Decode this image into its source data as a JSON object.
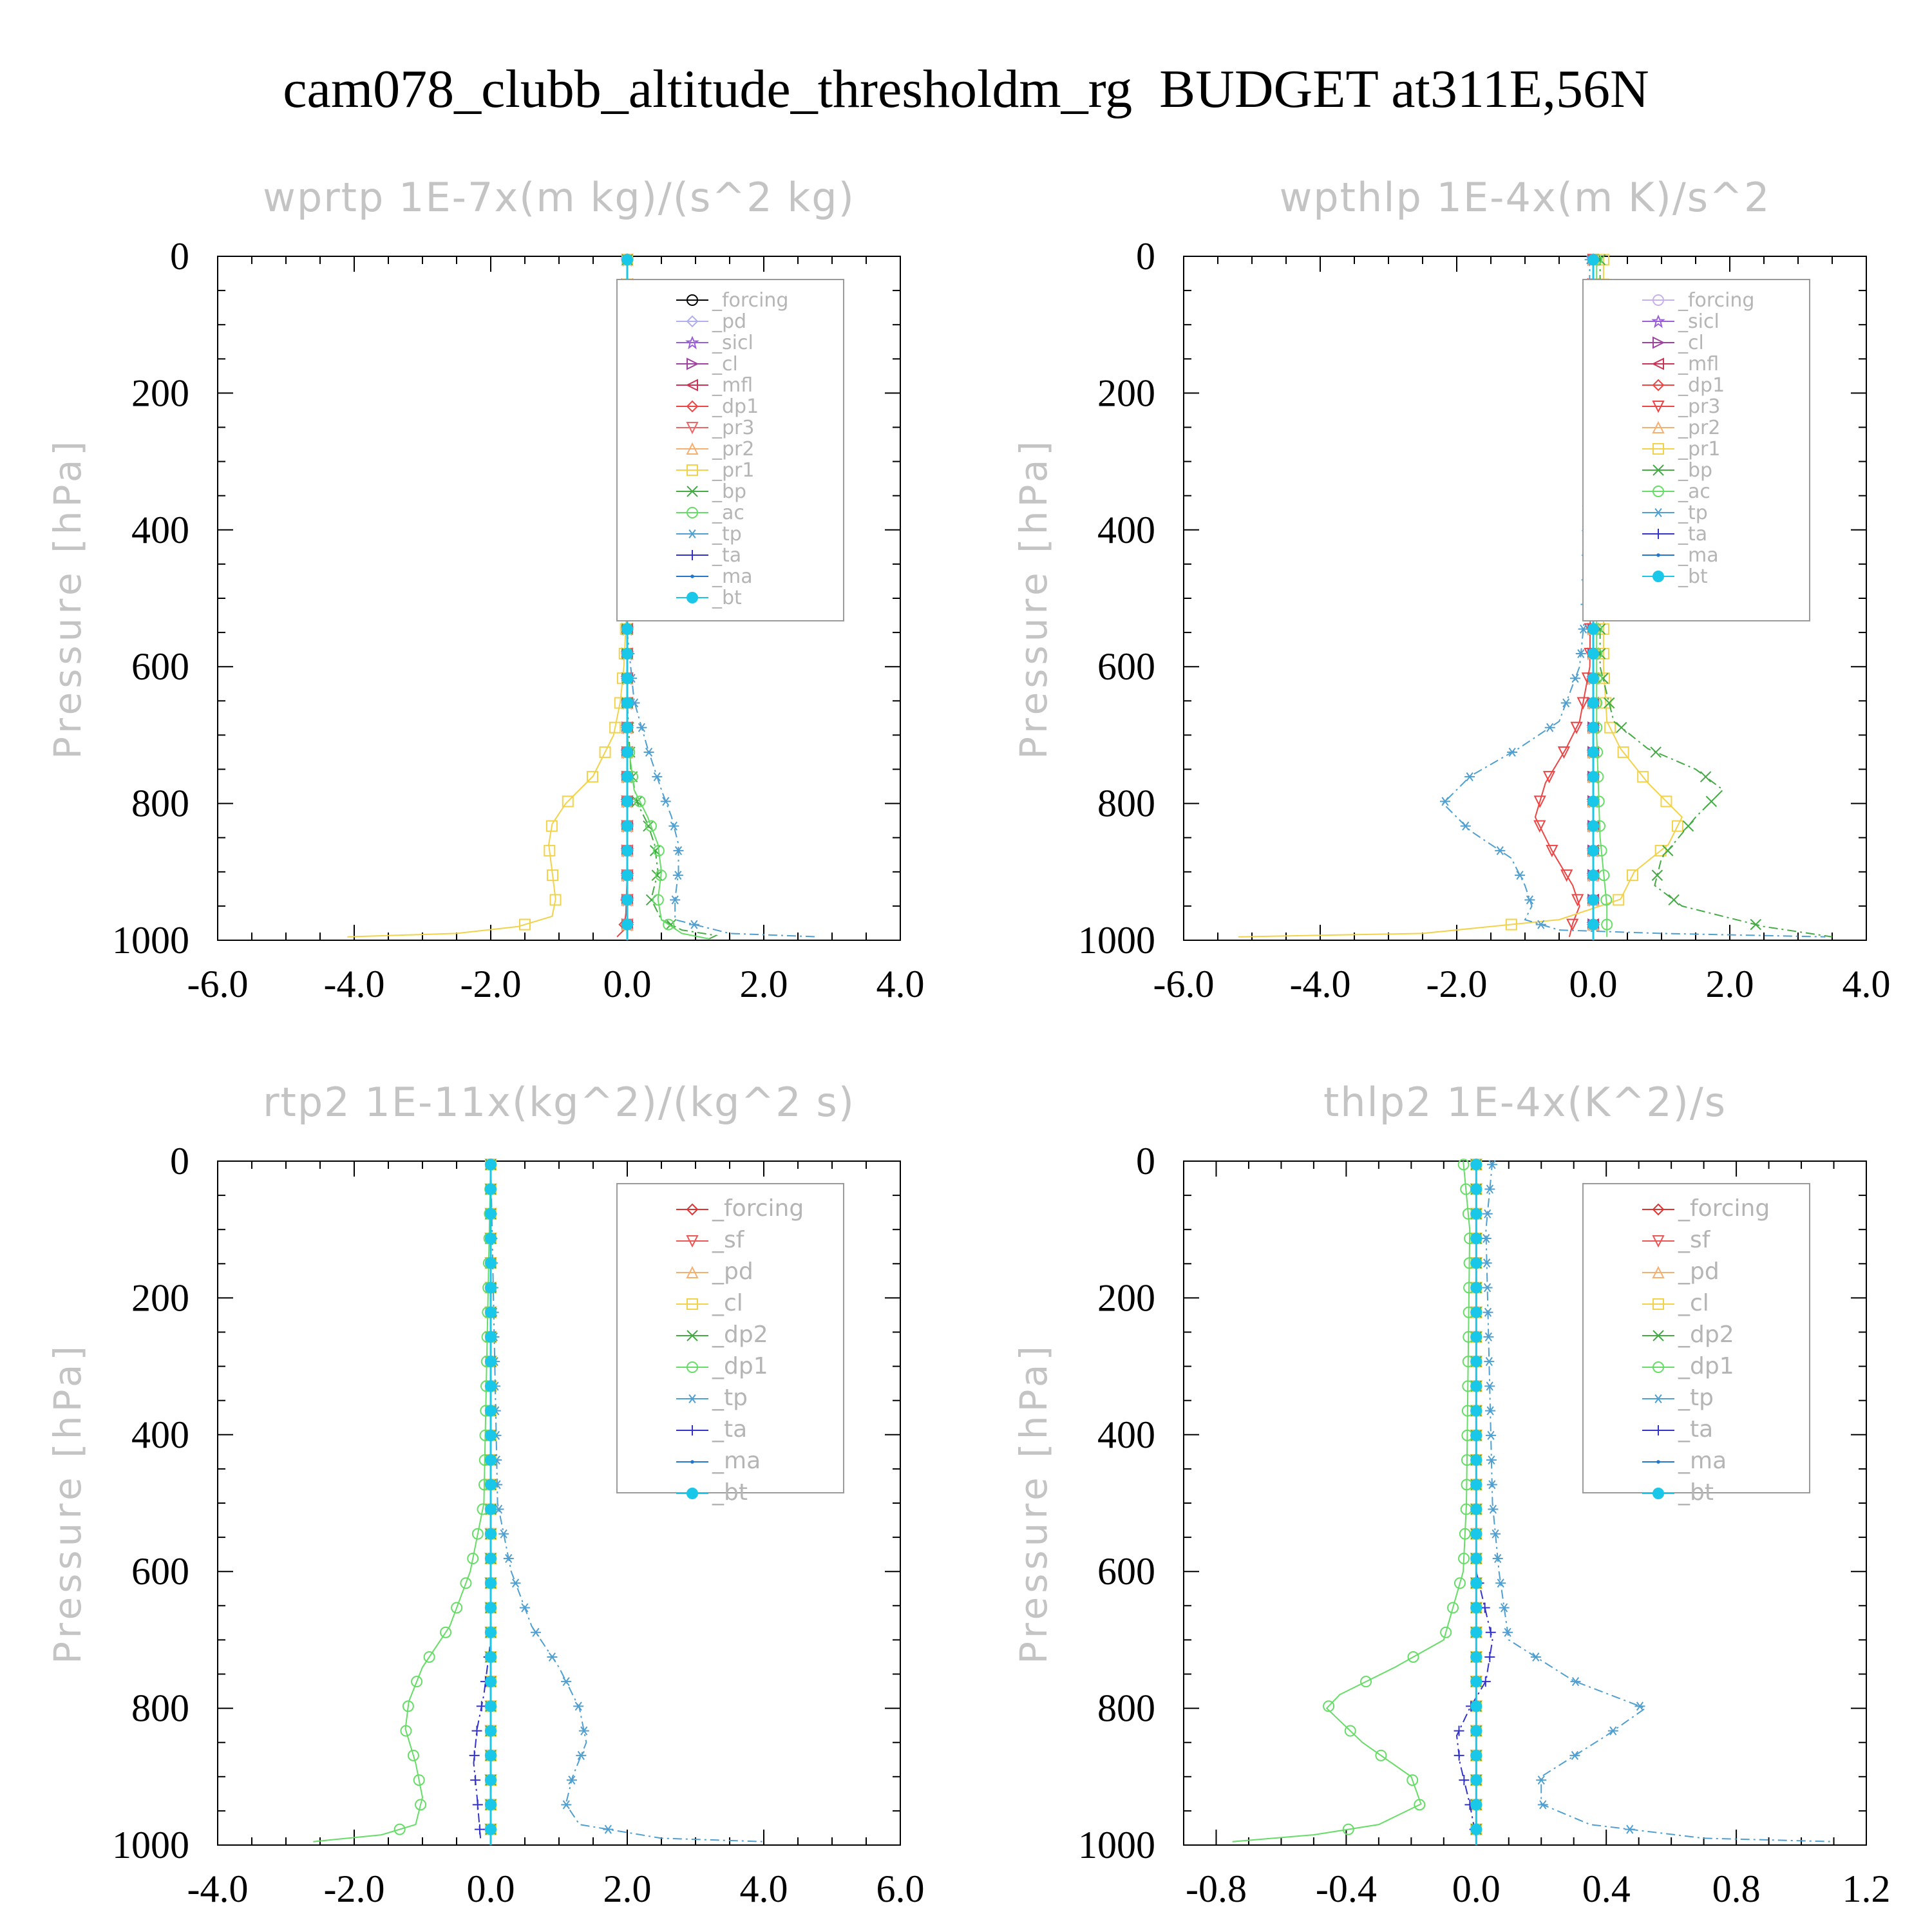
{
  "title": "cam078_clubb_altitude_thresholdm_rg  BUDGET at311E,56N",
  "chart_data": [
    {
      "type": "line",
      "title": "wprtp  1E-7x(m kg)/(s^2 kg)",
      "xlabel": "",
      "ylabel": "Pressure [hPa]",
      "xlim": [
        -6,
        4
      ],
      "ylim": [
        1000,
        0
      ],
      "xticks": [
        "-6.0",
        "-4.0",
        "-2.0",
        "0.0",
        "2.0",
        "4.0"
      ],
      "yticks": [
        "0",
        "200",
        "400",
        "600",
        "800",
        "1000"
      ],
      "legend_position": "top-right",
      "series": [
        {
          "name": "_forcing",
          "color": "#000000",
          "marker": "circle",
          "x": [
            0,
            0
          ],
          "y": [
            0,
            1000
          ]
        },
        {
          "name": "_pd",
          "color": "#b0b0f0",
          "marker": "diamond",
          "x": [
            0,
            0
          ],
          "y": [
            0,
            1000
          ]
        },
        {
          "name": "_sicl",
          "color": "#9a5fd6",
          "marker": "star",
          "x": [
            0,
            0
          ],
          "y": [
            0,
            1000
          ]
        },
        {
          "name": "_cl",
          "color": "#a040a0",
          "marker": "tri-right",
          "x": [
            0,
            0
          ],
          "y": [
            0,
            1000
          ]
        },
        {
          "name": "_mfl",
          "color": "#cc3355",
          "marker": "tri-left",
          "x": [
            0,
            0
          ],
          "y": [
            0,
            1000
          ]
        },
        {
          "name": "_dp1",
          "color": "#ee4444",
          "marker": "diamond",
          "x": [
            0,
            0,
            -0.02,
            -0.05,
            -0.15
          ],
          "y": [
            0,
            900,
            960,
            985,
            995
          ]
        },
        {
          "name": "_pr3",
          "color": "#ee6666",
          "marker": "tri-down",
          "x": [
            0,
            0
          ],
          "y": [
            0,
            1000
          ]
        },
        {
          "name": "_pr2",
          "color": "#f5b070",
          "marker": "tri-up",
          "x": [
            0,
            0
          ],
          "y": [
            0,
            1000
          ]
        },
        {
          "name": "_pr1",
          "color": "#f2d24a",
          "marker": "square",
          "x": [
            0,
            0,
            -0.05,
            -0.1,
            -0.2,
            -0.5,
            -0.9,
            -1.1,
            -1.15,
            -1.1,
            -1.05,
            -1.1,
            -1.6,
            -2.5,
            -4.1
          ],
          "y": [
            0,
            500,
            600,
            650,
            700,
            760,
            800,
            830,
            860,
            900,
            940,
            965,
            980,
            990,
            995
          ]
        },
        {
          "name": "_bp",
          "color": "#44aa44",
          "marker": "x",
          "x": [
            0,
            0,
            0.05,
            0.15,
            0.3,
            0.4,
            0.45,
            0.35,
            0.5,
            0.8,
            1.3,
            1.2
          ],
          "y": [
            0,
            650,
            750,
            800,
            830,
            860,
            900,
            940,
            970,
            985,
            993,
            998
          ]
        },
        {
          "name": "_ac",
          "color": "#66dd66",
          "marker": "circle",
          "x": [
            0,
            0,
            0.1,
            0.3,
            0.45,
            0.5,
            0.45,
            0.5,
            0.8,
            1.2
          ],
          "y": [
            0,
            700,
            780,
            820,
            860,
            900,
            940,
            970,
            990,
            998
          ]
        },
        {
          "name": "_tp",
          "color": "#4f9fd0",
          "marker": "asterisk",
          "x": [
            0,
            0,
            0.1,
            0.3,
            0.5,
            0.65,
            0.75,
            0.75,
            0.7,
            0.7,
            1.5,
            2.8
          ],
          "y": [
            0,
            550,
            650,
            720,
            780,
            820,
            860,
            900,
            940,
            970,
            990,
            995
          ]
        },
        {
          "name": "_ta",
          "color": "#3333cc",
          "marker": "plus",
          "x": [
            0,
            0
          ],
          "y": [
            0,
            1000
          ]
        },
        {
          "name": "_ma",
          "color": "#2277cc",
          "marker": "dot",
          "x": [
            0,
            0
          ],
          "y": [
            0,
            1000
          ]
        },
        {
          "name": "_bt",
          "color": "#19c7e8",
          "marker": "filled-circle",
          "x": [
            0,
            0
          ],
          "y": [
            0,
            1000
          ]
        }
      ]
    },
    {
      "type": "line",
      "title": "wpthlp  1E-4x(m K)/s^2",
      "xlabel": "",
      "ylabel": "Pressure [hPa]",
      "xlim": [
        -6,
        4
      ],
      "ylim": [
        1000,
        0
      ],
      "xticks": [
        "-6.0",
        "-4.0",
        "-2.0",
        "0.0",
        "2.0",
        "4.0"
      ],
      "yticks": [
        "0",
        "200",
        "400",
        "600",
        "800",
        "1000"
      ],
      "legend_position": "top-right",
      "series": [
        {
          "name": "_forcing",
          "color": "#c8b0f0",
          "marker": "circle",
          "x": [
            0,
            0
          ],
          "y": [
            0,
            1000
          ]
        },
        {
          "name": "_sicl",
          "color": "#9a5fd6",
          "marker": "star",
          "x": [
            0,
            0
          ],
          "y": [
            0,
            1000
          ]
        },
        {
          "name": "_cl",
          "color": "#a040a0",
          "marker": "tri-right",
          "x": [
            0,
            0
          ],
          "y": [
            0,
            1000
          ]
        },
        {
          "name": "_mfl",
          "color": "#cc3355",
          "marker": "tri-left",
          "x": [
            0,
            0
          ],
          "y": [
            0,
            1000
          ]
        },
        {
          "name": "_dp1",
          "color": "#ee4444",
          "marker": "diamond",
          "x": [
            0,
            0
          ],
          "y": [
            0,
            1000
          ]
        },
        {
          "name": "_pr3",
          "color": "#ee4444",
          "marker": "tri-down",
          "x": [
            0,
            -0.05,
            -0.2,
            -0.4,
            -0.7,
            -0.85,
            -0.6,
            -0.3,
            -0.2,
            -0.3,
            -0.35
          ],
          "y": [
            0,
            600,
            680,
            720,
            770,
            820,
            870,
            920,
            950,
            975,
            995
          ]
        },
        {
          "name": "_pr2",
          "color": "#f5b070",
          "marker": "tri-up",
          "x": [
            0,
            0
          ],
          "y": [
            0,
            1000
          ]
        },
        {
          "name": "_pr1",
          "color": "#f2d24a",
          "marker": "square",
          "x": [
            0.15,
            0.15,
            0.2,
            0.4,
            0.8,
            1.3,
            1.1,
            0.6,
            0.4,
            -0.5,
            -2.5,
            -5.2
          ],
          "y": [
            0,
            600,
            680,
            720,
            770,
            820,
            860,
            900,
            940,
            970,
            990,
            995
          ]
        },
        {
          "name": "_bp",
          "color": "#44aa44",
          "marker": "x",
          "x": [
            0.1,
            0.1,
            0.3,
            0.8,
            1.5,
            1.9,
            1.5,
            1.0,
            0.9,
            1.3,
            2.5,
            3.5
          ],
          "y": [
            0,
            600,
            680,
            720,
            750,
            780,
            820,
            880,
            920,
            950,
            980,
            995
          ]
        },
        {
          "name": "_ac",
          "color": "#66dd66",
          "marker": "circle",
          "x": [
            0.05,
            0.05,
            0.1,
            0.2,
            0.2
          ],
          "y": [
            0,
            700,
            850,
            950,
            995
          ]
        },
        {
          "name": "_tp",
          "color": "#4f9fd0",
          "marker": "asterisk",
          "x": [
            -0.05,
            -0.1,
            -0.2,
            -0.5,
            -1.1,
            -1.8,
            -2.2,
            -1.8,
            -1.2,
            -1.0,
            -0.9,
            -1.0,
            -0.5,
            1.0,
            3.4
          ],
          "y": [
            0,
            500,
            600,
            680,
            720,
            760,
            800,
            840,
            880,
            920,
            950,
            970,
            985,
            990,
            995
          ]
        },
        {
          "name": "_ta",
          "color": "#3333cc",
          "marker": "plus",
          "x": [
            0,
            0
          ],
          "y": [
            0,
            1000
          ]
        },
        {
          "name": "_ma",
          "color": "#2277cc",
          "marker": "dot",
          "x": [
            0,
            0
          ],
          "y": [
            0,
            1000
          ]
        },
        {
          "name": "_bt",
          "color": "#19c7e8",
          "marker": "filled-circle",
          "x": [
            0,
            0
          ],
          "y": [
            0,
            1000
          ]
        }
      ]
    },
    {
      "type": "line",
      "title": "rtp2  1E-11x(kg^2)/(kg^2 s)",
      "xlabel": "",
      "ylabel": "Pressure [hPa]",
      "xlim": [
        -4,
        6
      ],
      "ylim": [
        1000,
        0
      ],
      "xticks": [
        "-4.0",
        "-2.0",
        "0.0",
        "2.0",
        "4.0",
        "6.0"
      ],
      "yticks": [
        "0",
        "200",
        "400",
        "600",
        "800",
        "1000"
      ],
      "legend_position": "top-right",
      "series": [
        {
          "name": "_forcing",
          "color": "#dd3333",
          "marker": "diamond",
          "x": [
            0,
            0
          ],
          "y": [
            0,
            1000
          ]
        },
        {
          "name": "_sf",
          "color": "#ee5555",
          "marker": "tri-down",
          "x": [
            0,
            0
          ],
          "y": [
            0,
            1000
          ]
        },
        {
          "name": "_pd",
          "color": "#f5b070",
          "marker": "tri-up",
          "x": [
            0,
            0
          ],
          "y": [
            0,
            1000
          ]
        },
        {
          "name": "_cl",
          "color": "#f2d24a",
          "marker": "square",
          "x": [
            0,
            0
          ],
          "y": [
            0,
            1000
          ]
        },
        {
          "name": "_dp2",
          "color": "#44aa44",
          "marker": "x",
          "x": [
            0,
            0
          ],
          "y": [
            0,
            1000
          ]
        },
        {
          "name": "_dp1",
          "color": "#66dd66",
          "marker": "circle",
          "x": [
            0,
            -0.1,
            -0.3,
            -0.6,
            -1.0,
            -1.2,
            -1.25,
            -1.1,
            -1.0,
            -1.1,
            -1.6,
            -2.6
          ],
          "y": [
            0,
            500,
            600,
            680,
            740,
            790,
            830,
            880,
            930,
            970,
            985,
            995
          ]
        },
        {
          "name": "_tp",
          "color": "#4f9fd0",
          "marker": "asterisk",
          "x": [
            0,
            0.1,
            0.3,
            0.6,
            1.0,
            1.3,
            1.4,
            1.2,
            1.1,
            1.3,
            2.5,
            4.0
          ],
          "y": [
            0,
            500,
            600,
            680,
            740,
            800,
            850,
            900,
            940,
            970,
            990,
            995
          ]
        },
        {
          "name": "_ta",
          "color": "#3333cc",
          "marker": "plus",
          "x": [
            0,
            0,
            -0.1,
            -0.2,
            -0.25,
            -0.2,
            -0.15
          ],
          "y": [
            0,
            700,
            780,
            830,
            880,
            930,
            990
          ]
        },
        {
          "name": "_ma",
          "color": "#2277cc",
          "marker": "dot",
          "x": [
            0,
            0
          ],
          "y": [
            0,
            1000
          ]
        },
        {
          "name": "_bt",
          "color": "#19c7e8",
          "marker": "filled-circle",
          "x": [
            0,
            0
          ],
          "y": [
            0,
            1000
          ]
        }
      ]
    },
    {
      "type": "line",
      "title": "thlp2  1E-4x(K^2)/s",
      "xlabel": "",
      "ylabel": "Pressure [hPa]",
      "xlim": [
        -0.9,
        1.2
      ],
      "ylim": [
        1000,
        0
      ],
      "xticks": [
        "-0.8",
        "-0.4",
        "0.0",
        "0.4",
        "0.8",
        "1.2"
      ],
      "yticks": [
        "0",
        "200",
        "400",
        "600",
        "800",
        "1000"
      ],
      "legend_position": "top-right",
      "series": [
        {
          "name": "_forcing",
          "color": "#dd3333",
          "marker": "diamond",
          "x": [
            0,
            0
          ],
          "y": [
            0,
            1000
          ]
        },
        {
          "name": "_sf",
          "color": "#ee5555",
          "marker": "tri-down",
          "x": [
            0,
            0
          ],
          "y": [
            0,
            1000
          ]
        },
        {
          "name": "_pd",
          "color": "#f5b070",
          "marker": "tri-up",
          "x": [
            0,
            0
          ],
          "y": [
            0,
            1000
          ]
        },
        {
          "name": "_cl",
          "color": "#f2d24a",
          "marker": "square",
          "x": [
            0,
            0
          ],
          "y": [
            0,
            1000
          ]
        },
        {
          "name": "_dp2",
          "color": "#44aa44",
          "marker": "x",
          "x": [
            0,
            0
          ],
          "y": [
            0,
            1000
          ]
        },
        {
          "name": "_dp1",
          "color": "#66dd66",
          "marker": "circle",
          "x": [
            -0.04,
            -0.02,
            -0.03,
            -0.04,
            -0.1,
            -0.25,
            -0.42,
            -0.46,
            -0.35,
            -0.2,
            -0.17,
            -0.3,
            -0.5,
            -0.75
          ],
          "y": [
            0,
            100,
            500,
            600,
            700,
            740,
            780,
            800,
            850,
            900,
            940,
            970,
            985,
            995
          ]
        },
        {
          "name": "_tp",
          "color": "#4f9fd0",
          "marker": "asterisk",
          "x": [
            0.05,
            0.03,
            0.05,
            0.07,
            0.1,
            0.3,
            0.52,
            0.4,
            0.2,
            0.2,
            0.35,
            0.7,
            1.1
          ],
          "y": [
            0,
            100,
            500,
            600,
            700,
            760,
            800,
            840,
            900,
            940,
            970,
            990,
            995
          ]
        },
        {
          "name": "_ta",
          "color": "#3333cc",
          "marker": "plus",
          "x": [
            0,
            0,
            0.05,
            0.03,
            -0.02,
            -0.06,
            -0.05,
            -0.02,
            0
          ],
          "y": [
            0,
            600,
            700,
            760,
            800,
            840,
            880,
            940,
            990
          ]
        },
        {
          "name": "_ma",
          "color": "#2277cc",
          "marker": "dot",
          "x": [
            0,
            0
          ],
          "y": [
            0,
            1000
          ]
        },
        {
          "name": "_bt",
          "color": "#19c7e8",
          "marker": "filled-circle",
          "x": [
            0,
            0
          ],
          "y": [
            0,
            1000
          ]
        }
      ]
    }
  ]
}
